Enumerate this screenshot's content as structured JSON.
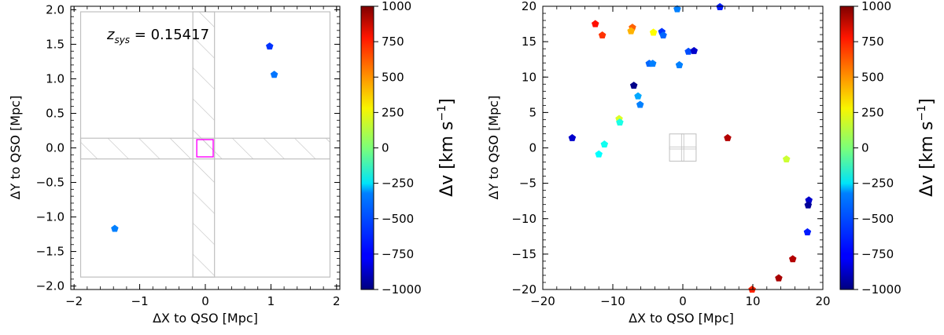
{
  "colorbar_ticks": [
    "1000",
    "750",
    "500",
    "250",
    "0",
    "−250",
    "−500",
    "−750",
    "−1000"
  ],
  "chart_data": [
    {
      "type": "scatter",
      "title": "",
      "xlabel": "ΔX to QSO [Mpc]",
      "ylabel": "ΔY to QSO [Mpc]",
      "xlim": [
        -2.05,
        2.05
      ],
      "ylim": [
        -2.05,
        2.05
      ],
      "xticks": [
        -2,
        -1,
        0,
        1,
        2
      ],
      "yticks": [
        -2.0,
        -1.5,
        -1.0,
        -0.5,
        0.0,
        0.5,
        1.0,
        1.5,
        2.0
      ],
      "xtick_labels": [
        "−2",
        "−1",
        "0",
        "1",
        "2"
      ],
      "ytick_labels": [
        "−2.0",
        "−1.5",
        "−1.0",
        "−0.5",
        "0.0",
        "0.5",
        "1.0",
        "1.5",
        "2.0"
      ],
      "annotation": "z_sys = 0.15417",
      "annotation_main": "z",
      "annotation_sub": "sys",
      "annotation_rest": " = 0.15417",
      "colorbar": {
        "label": "Δv [km s⁻¹]",
        "label_main": "Δv [km s",
        "label_sup": "−1",
        "label_end": "]",
        "vmin": -1000,
        "vmax": 1000
      },
      "points": [
        {
          "x": 0.98,
          "y": 1.47,
          "dv": -650
        },
        {
          "x": 1.05,
          "y": 1.06,
          "dv": -520
        },
        {
          "x": -1.38,
          "y": -1.17,
          "dv": -500
        }
      ]
    },
    {
      "type": "scatter",
      "title": "",
      "xlabel": "ΔX to QSO [Mpc]",
      "ylabel": "ΔY to QSO [Mpc]",
      "xlim": [
        -20,
        20
      ],
      "ylim": [
        -20,
        20
      ],
      "xticks": [
        -20,
        -10,
        0,
        10,
        20
      ],
      "yticks": [
        -20,
        -15,
        -10,
        -5,
        0,
        5,
        10,
        15,
        20
      ],
      "xtick_labels": [
        "−20",
        "−10",
        "0",
        "10",
        "20"
      ],
      "ytick_labels": [
        "−20",
        "−15",
        "−10",
        "−5",
        "0",
        "5",
        "10",
        "15",
        "20"
      ],
      "colorbar": {
        "label": "Δv [km s⁻¹]",
        "label_main": "Δv [km s",
        "label_sup": "−1",
        "label_end": "]",
        "vmin": -1000,
        "vmax": 1000
      },
      "points": [
        {
          "x": -12.5,
          "y": 17.5,
          "dv": 720
        },
        {
          "x": -11.5,
          "y": 15.9,
          "dv": 650
        },
        {
          "x": -7.2,
          "y": 17.0,
          "dv": 560
        },
        {
          "x": -7.4,
          "y": 16.5,
          "dv": 400
        },
        {
          "x": -4.2,
          "y": 16.3,
          "dv": 250
        },
        {
          "x": -3.0,
          "y": 16.4,
          "dv": -650
        },
        {
          "x": -2.8,
          "y": 15.9,
          "dv": -550
        },
        {
          "x": -0.8,
          "y": 19.6,
          "dv": -500
        },
        {
          "x": 5.3,
          "y": 19.9,
          "dv": -700
        },
        {
          "x": 0.8,
          "y": 13.6,
          "dv": -600
        },
        {
          "x": 1.6,
          "y": 13.7,
          "dv": -850
        },
        {
          "x": -4.8,
          "y": 11.9,
          "dv": -550
        },
        {
          "x": -4.3,
          "y": 11.9,
          "dv": -500
        },
        {
          "x": -0.5,
          "y": 11.7,
          "dv": -500
        },
        {
          "x": -7.0,
          "y": 8.8,
          "dv": -980
        },
        {
          "x": -6.4,
          "y": 7.3,
          "dv": -420
        },
        {
          "x": -6.1,
          "y": 6.1,
          "dv": -500
        },
        {
          "x": -9.1,
          "y": 4.1,
          "dv": 180
        },
        {
          "x": -9.0,
          "y": 3.6,
          "dv": -200
        },
        {
          "x": -15.8,
          "y": 1.4,
          "dv": -850
        },
        {
          "x": -11.2,
          "y": 0.5,
          "dv": -220
        },
        {
          "x": -12.0,
          "y": -0.9,
          "dv": -250
        },
        {
          "x": 6.4,
          "y": 1.4,
          "dv": 900
        },
        {
          "x": 14.8,
          "y": -1.6,
          "dv": 150
        },
        {
          "x": 18.0,
          "y": -7.4,
          "dv": -850
        },
        {
          "x": 17.9,
          "y": -8.1,
          "dv": -950
        },
        {
          "x": 17.8,
          "y": -11.9,
          "dv": -700
        },
        {
          "x": 15.7,
          "y": -15.7,
          "dv": 900
        },
        {
          "x": 13.7,
          "y": -18.4,
          "dv": 920
        },
        {
          "x": 9.9,
          "y": -20.0,
          "dv": 680
        }
      ]
    }
  ]
}
